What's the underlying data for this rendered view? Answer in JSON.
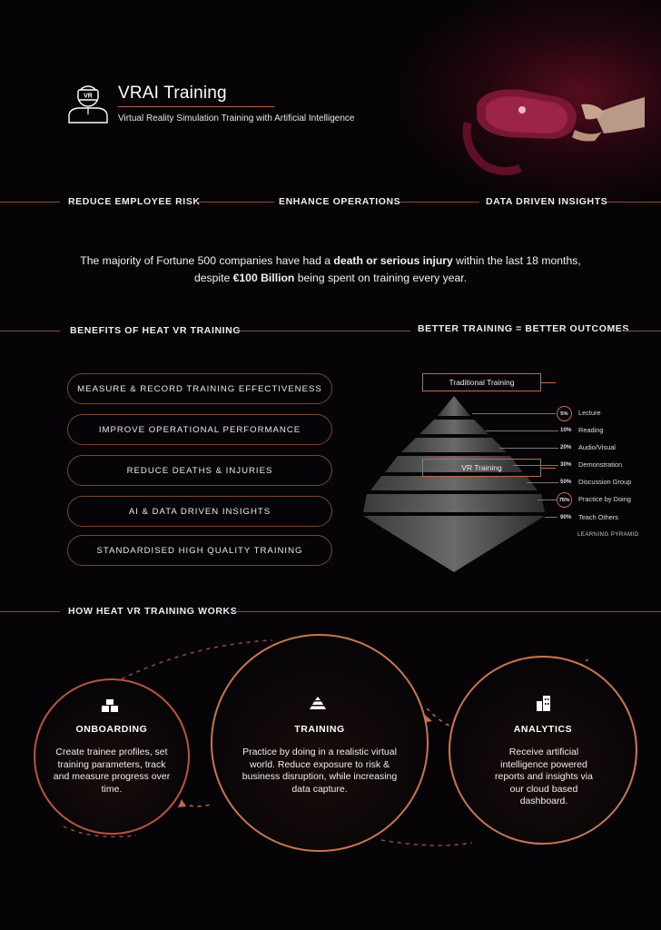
{
  "header": {
    "title": "VRAI Training",
    "subtitle": "Virtual Reality Simulation Training with Artificial Intelligence",
    "logo_badge": "VR"
  },
  "pillars": [
    "REDUCE EMPLOYEE RISK",
    "ENHANCE OPERATIONS",
    "DATA DRIVEN INSIGHTS"
  ],
  "statement": {
    "p1": "The majority of Fortune 500 companies have had a ",
    "b1": "death or serious injury",
    "p2": " within the last 18 months,",
    "p3": "despite ",
    "b2": "€100 Billion",
    "p4": " being spent on training every year."
  },
  "benefits": {
    "heading": "BENEFITS OF HEAT VR TRAINING",
    "items": [
      "MEASURE & RECORD TRAINING EFFECTIVENESS",
      "IMPROVE OPERATIONAL PERFORMANCE",
      "REDUCE DEATHS & INJURIES",
      "AI & DATA DRIVEN INSIGHTS",
      "STANDARDISED HIGH QUALITY TRAINING"
    ]
  },
  "pyramid": {
    "heading": "BETTER TRAINING = BETTER OUTCOMES",
    "traditional_label": "Traditional Training",
    "vr_label": "VR Training",
    "caption": "LEARNING PYRAMID",
    "levels": [
      {
        "pct": "5%",
        "label": "Lecture"
      },
      {
        "pct": "10%",
        "label": "Reading"
      },
      {
        "pct": "20%",
        "label": "Audio/Visual"
      },
      {
        "pct": "30%",
        "label": "Demonstration"
      },
      {
        "pct": "50%",
        "label": "Discussion Group"
      },
      {
        "pct": "75%",
        "label": "Practice by Doing"
      },
      {
        "pct": "90%",
        "label": "Teach Others"
      }
    ]
  },
  "how": {
    "heading": "HOW HEAT VR TRAINING WORKS",
    "steps": [
      {
        "title": "ONBOARDING",
        "text": "Create trainee profiles, set training parameters, track and measure progress over time.",
        "icon": "cubes-icon"
      },
      {
        "title": "TRAINING",
        "text": "Practice by doing in a realistic virtual world. Reduce exposure to risk & business disruption, while increasing data capture.",
        "icon": "pyramid-icon"
      },
      {
        "title": "ANALYTICS",
        "text": "Receive artificial intelligence powered reports and insights via our cloud based dashboard.",
        "icon": "building-icon"
      }
    ]
  },
  "colors": {
    "background": "#060406",
    "accent": "#c06a4a",
    "rule": "#8a4a3a",
    "headset": "#8a1c3c"
  }
}
